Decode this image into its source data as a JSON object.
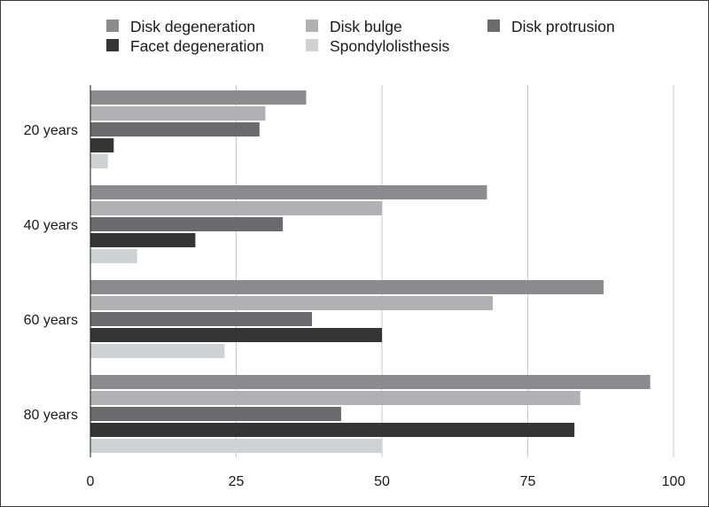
{
  "chart_data": {
    "type": "bar",
    "orientation": "horizontal",
    "title": "",
    "xlabel": "",
    "ylabel": "",
    "categories": [
      "20 years",
      "40 years",
      "60 years",
      "80 years"
    ],
    "series": [
      {
        "name": "Disk degeneration",
        "color": "#8c8c8e",
        "values": [
          37,
          68,
          88,
          96
        ]
      },
      {
        "name": "Disk bulge",
        "color": "#b1b1b3",
        "values": [
          30,
          50,
          69,
          84
        ]
      },
      {
        "name": "Disk protrusion",
        "color": "#6b6b6d",
        "values": [
          29,
          33,
          38,
          43
        ]
      },
      {
        "name": "Facet degeneration",
        "color": "#353535",
        "values": [
          4,
          18,
          50,
          83
        ]
      },
      {
        "name": "Spondylolisthesis",
        "color": "#d0d1d3",
        "values": [
          3,
          8,
          23,
          50
        ]
      }
    ],
    "xlim": [
      0,
      100
    ],
    "xticks": [
      "0",
      "25",
      "50",
      "75",
      "100"
    ],
    "grid": "vertical",
    "legend": "top"
  }
}
